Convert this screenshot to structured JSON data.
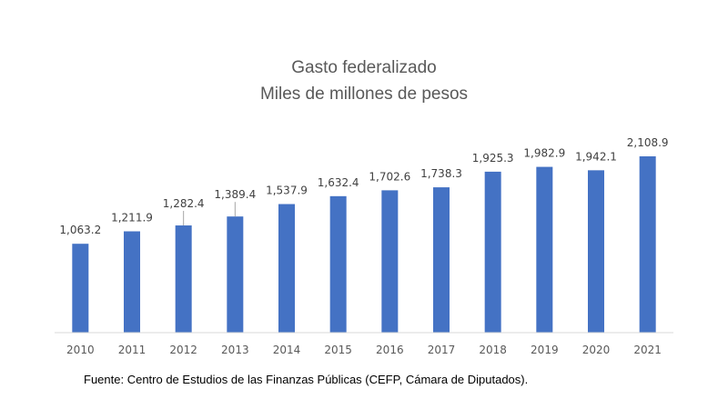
{
  "chart_data": {
    "type": "bar",
    "title": "Gasto federalizado",
    "subtitle": "Miles de millones de pesos",
    "categories": [
      "2010",
      "2011",
      "2012",
      "2013",
      "2014",
      "2015",
      "2016",
      "2017",
      "2018",
      "2019",
      "2020",
      "2021"
    ],
    "values": [
      1063.2,
      1211.9,
      1282.4,
      1389.4,
      1537.9,
      1632.4,
      1702.6,
      1738.3,
      1925.3,
      1982.9,
      1942.1,
      2108.9
    ],
    "data_labels": [
      "1,063.2",
      "1,211.9",
      "1,282.4",
      "1,389.4",
      "1,537.9",
      "1,632.4",
      "1,702.6",
      "1,738.3",
      "1,925.3",
      "1,982.9",
      "1,942.1",
      "2,108.9"
    ],
    "xlabel": "",
    "ylabel": "",
    "ylim": [
      0,
      2500
    ],
    "grid": false,
    "legend": "none",
    "bar_color": "#4472C4",
    "source_note": "Fuente: Centro de Estudios de las Finanzas Públicas (CEFP, Cámara de Diputados)."
  }
}
